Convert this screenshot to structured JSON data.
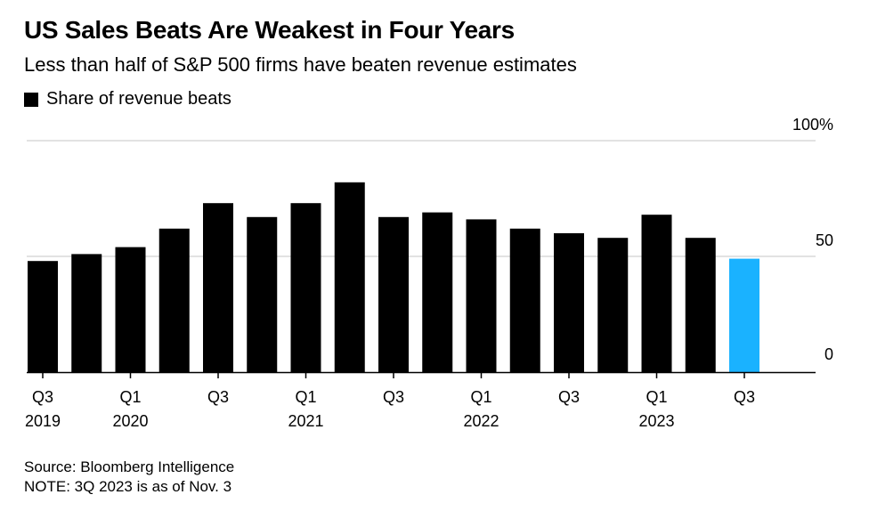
{
  "title": "US Sales Beats Are Weakest in Four Years",
  "subtitle": "Less than half of S&P 500 firms have beaten revenue estimates",
  "legend": {
    "label": "Share of revenue beats"
  },
  "footer": {
    "source": "Source: Bloomberg Intelligence",
    "note": "NOTE: 3Q 2023 is as of Nov. 3"
  },
  "colors": {
    "bar": "#000000",
    "highlight": "#1ab2ff",
    "grid": "#d9d9d9",
    "axis": "#000000"
  },
  "chart_data": {
    "type": "bar",
    "categories": [
      "Q3 2019",
      "Q4 2019",
      "Q1 2020",
      "Q2 2020",
      "Q3 2020",
      "Q4 2020",
      "Q1 2021",
      "Q2 2021",
      "Q3 2021",
      "Q4 2021",
      "Q1 2022",
      "Q2 2022",
      "Q3 2022",
      "Q4 2022",
      "Q1 2023",
      "Q2 2023",
      "Q3 2023"
    ],
    "series": [
      {
        "name": "Share of revenue beats",
        "values": [
          48,
          51,
          54,
          62,
          73,
          67,
          73,
          82,
          67,
          69,
          66,
          62,
          60,
          58,
          68,
          58,
          49
        ]
      }
    ],
    "highlight_index": 16,
    "ylim": [
      0,
      100
    ],
    "y_ticks": [
      {
        "value": 0,
        "label": "0"
      },
      {
        "value": 50,
        "label": "50"
      },
      {
        "value": 100,
        "label": "100%"
      }
    ],
    "x_labels": [
      {
        "index": 0,
        "quarter": "Q3",
        "year": "2019"
      },
      {
        "index": 2,
        "quarter": "Q1",
        "year": "2020"
      },
      {
        "index": 4,
        "quarter": "Q3",
        "year": ""
      },
      {
        "index": 6,
        "quarter": "Q1",
        "year": "2021"
      },
      {
        "index": 8,
        "quarter": "Q3",
        "year": ""
      },
      {
        "index": 10,
        "quarter": "Q1",
        "year": "2022"
      },
      {
        "index": 12,
        "quarter": "Q3",
        "year": ""
      },
      {
        "index": 14,
        "quarter": "Q1",
        "year": "2023"
      },
      {
        "index": 16,
        "quarter": "Q3",
        "year": ""
      }
    ],
    "grid": true
  }
}
